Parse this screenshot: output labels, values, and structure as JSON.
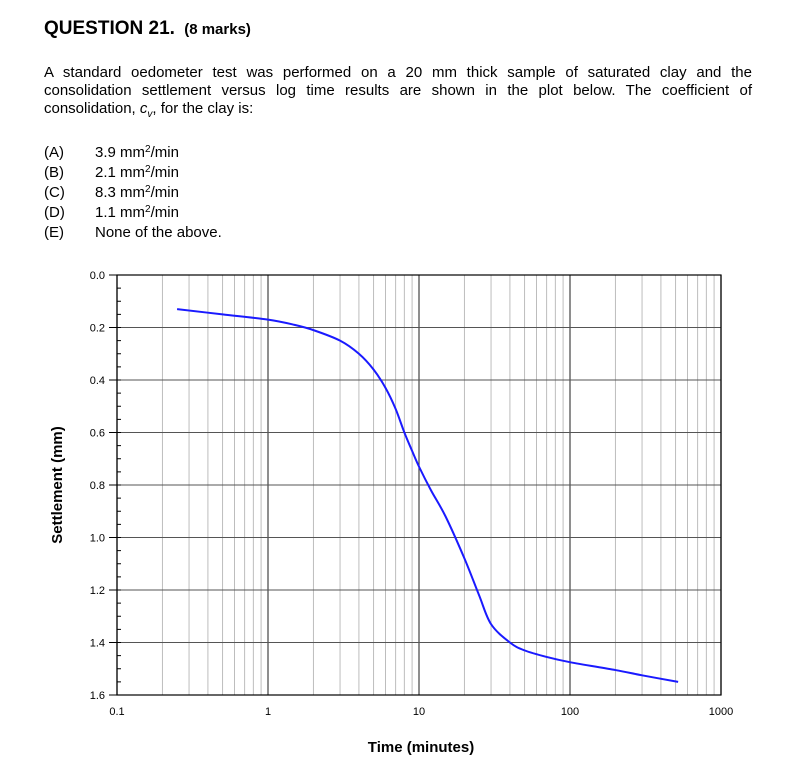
{
  "question": {
    "number_label": "QUESTION  21.",
    "marks_label": "(8 marks)",
    "body_pre": "A standard oedometer test was performed on a 20 mm thick sample of saturated clay and the consolidation settlement versus log time results are shown in the plot below.  The coefficient of consolidation, ",
    "cv_symbol": "c",
    "cv_subscript": "v",
    "body_post": ", for the clay is:"
  },
  "options": [
    {
      "label": "(A)",
      "value": "3.9 mm",
      "sup": "2",
      "unit": "/min"
    },
    {
      "label": "(B)",
      "value": "2.1 mm",
      "sup": "2",
      "unit": "/min"
    },
    {
      "label": "(C)",
      "value": "8.3 mm",
      "sup": "2",
      "unit": "/min"
    },
    {
      "label": "(D)",
      "value": "1.1 mm",
      "sup": "2",
      "unit": "/min"
    },
    {
      "label": "(E)",
      "value": "None of the above.",
      "sup": "",
      "unit": ""
    }
  ],
  "chart_data": {
    "type": "line",
    "xlabel": "Time (minutes)",
    "ylabel": "Settlement (mm)",
    "xscale": "log",
    "xlim": [
      0.1,
      1000
    ],
    "ylim": [
      1.6,
      0.0
    ],
    "y_inverted": true,
    "grid": true,
    "x_tick_labels": [
      "0.1",
      "1",
      "10",
      "100",
      "1000"
    ],
    "x_ticks": [
      0.1,
      1,
      10,
      100,
      1000
    ],
    "y_tick_labels": [
      "0.0",
      "0.2",
      "0.4",
      "0.6",
      "0.8",
      "1.0",
      "1.2",
      "1.4",
      "1.6"
    ],
    "y_ticks": [
      0.0,
      0.2,
      0.4,
      0.6,
      0.8,
      1.0,
      1.2,
      1.4,
      1.6
    ],
    "line_color": "#1a1aff",
    "series": [
      {
        "x": [
          0.25,
          0.5,
          1,
          1.5,
          2,
          3,
          4,
          5,
          6,
          7,
          8,
          9,
          10,
          12,
          15,
          20,
          25,
          30,
          40,
          50,
          70,
          100,
          200,
          300,
          520
        ],
        "y": [
          0.13,
          0.15,
          0.17,
          0.19,
          0.21,
          0.25,
          0.3,
          0.36,
          0.43,
          0.51,
          0.6,
          0.67,
          0.73,
          0.82,
          0.92,
          1.08,
          1.22,
          1.33,
          1.4,
          1.43,
          1.455,
          1.475,
          1.505,
          1.525,
          1.55
        ]
      }
    ]
  }
}
